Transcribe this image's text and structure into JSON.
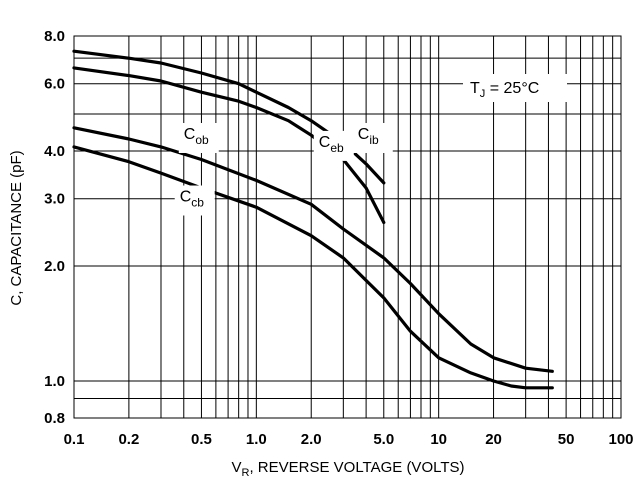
{
  "chart_data": {
    "type": "line",
    "xscale": "log",
    "yscale": "log",
    "xlim": [
      0.1,
      100
    ],
    "ylim": [
      0.8,
      8.0
    ],
    "grid": true,
    "xlabel": {
      "main": "V",
      "sub": "R",
      "rest": ", REVERSE VOLTAGE (VOLTS)"
    },
    "ylabel": "C, CAPACITANCE (pF)",
    "x_ticks": [
      {
        "v": 0.1,
        "label": "0.1"
      },
      {
        "v": 0.2,
        "label": "0.2"
      },
      {
        "v": 0.5,
        "label": "0.5"
      },
      {
        "v": 1,
        "label": "1.0"
      },
      {
        "v": 2,
        "label": "2.0"
      },
      {
        "v": 5,
        "label": "5.0"
      },
      {
        "v": 10,
        "label": "10"
      },
      {
        "v": 20,
        "label": "20"
      },
      {
        "v": 50,
        "label": "50"
      },
      {
        "v": 100,
        "label": "100"
      }
    ],
    "y_ticks": [
      {
        "v": 0.8,
        "label": "0.8"
      },
      {
        "v": 1.0,
        "label": "1.0"
      },
      {
        "v": 2.0,
        "label": "2.0"
      },
      {
        "v": 3.0,
        "label": "3.0"
      },
      {
        "v": 4.0,
        "label": "4.0"
      },
      {
        "v": 6.0,
        "label": "6.0"
      },
      {
        "v": 8.0,
        "label": "8.0"
      }
    ],
    "x_grid": [
      0.1,
      0.2,
      0.3,
      0.4,
      0.5,
      0.6,
      0.7,
      0.8,
      0.9,
      1,
      2,
      3,
      4,
      5,
      6,
      7,
      8,
      9,
      10,
      20,
      30,
      40,
      50,
      60,
      70,
      80,
      90,
      100
    ],
    "y_grid": [
      0.8,
      0.9,
      1.0,
      2.0,
      3.0,
      4.0,
      5.0,
      6.0,
      7.0,
      8.0
    ],
    "annotation": {
      "main": "T",
      "sub": "J",
      "rest": " = 25°C"
    },
    "series": [
      {
        "name": "Cib",
        "label_main": "C",
        "label_sub": "ib",
        "label_pos": [
          3.6,
          4.3
        ],
        "x": [
          0.1,
          0.2,
          0.3,
          0.5,
          0.8,
          1.0,
          1.5,
          2.0,
          3.0,
          4.0,
          5.0
        ],
        "y": [
          7.3,
          7.0,
          6.8,
          6.4,
          6.0,
          5.7,
          5.2,
          4.8,
          4.2,
          3.7,
          3.3
        ]
      },
      {
        "name": "Ceb",
        "label_main": "C",
        "label_sub": "eb",
        "label_pos": [
          2.2,
          4.1
        ],
        "x": [
          0.1,
          0.2,
          0.3,
          0.5,
          0.8,
          1.0,
          1.5,
          2.0,
          3.0,
          4.0,
          5.0
        ],
        "y": [
          6.6,
          6.3,
          6.1,
          5.7,
          5.4,
          5.2,
          4.8,
          4.4,
          3.8,
          3.2,
          2.6
        ]
      },
      {
        "name": "Cob",
        "label_main": "C",
        "label_sub": "ob",
        "label_pos": [
          0.4,
          4.3
        ],
        "x": [
          0.1,
          0.2,
          0.3,
          0.5,
          1.0,
          2.0,
          3.0,
          5.0,
          7.0,
          10.0,
          15.0,
          20.0,
          30.0,
          42.0
        ],
        "y": [
          4.6,
          4.3,
          4.1,
          3.8,
          3.35,
          2.9,
          2.5,
          2.1,
          1.8,
          1.5,
          1.25,
          1.15,
          1.08,
          1.06
        ]
      },
      {
        "name": "Ccb",
        "label_main": "C",
        "label_sub": "cb",
        "label_pos": [
          0.38,
          2.95
        ],
        "x": [
          0.1,
          0.2,
          0.3,
          0.5,
          1.0,
          2.0,
          3.0,
          5.0,
          7.0,
          10.0,
          15.0,
          20.0,
          25.0,
          30.0,
          42.0
        ],
        "y": [
          4.1,
          3.75,
          3.5,
          3.2,
          2.85,
          2.4,
          2.1,
          1.65,
          1.35,
          1.15,
          1.05,
          1.0,
          0.97,
          0.96,
          0.96
        ]
      }
    ]
  }
}
